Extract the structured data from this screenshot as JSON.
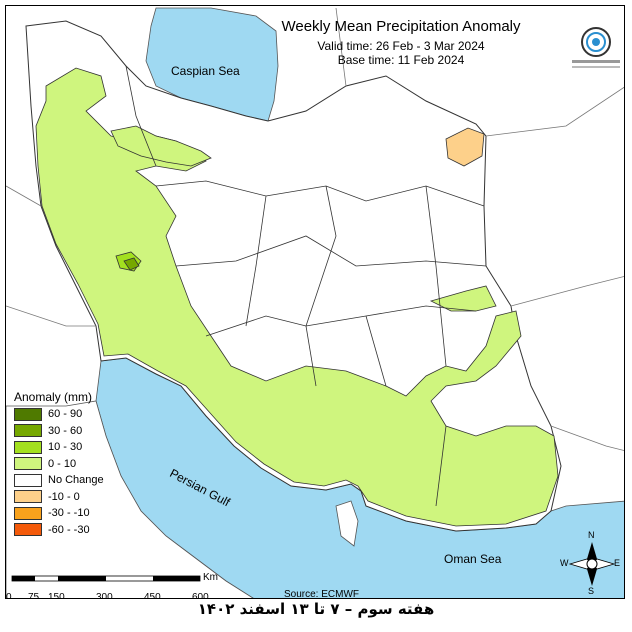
{
  "header": {
    "title": "Weekly Mean Precipitation Anomaly",
    "valid_time": "Valid time:  26 Feb - 3 Mar 2024",
    "base_time": "Base time: 11 Feb 2024"
  },
  "labels": {
    "caspian": "Caspian Sea",
    "persian_gulf": "Persian Gulf",
    "oman_sea": "Oman Sea"
  },
  "legend": {
    "title": "Anomaly (mm)",
    "items": [
      {
        "label": "60 - 90",
        "color": "#4f7a00"
      },
      {
        "label": "30 - 60",
        "color": "#76a800"
      },
      {
        "label": "10 - 30",
        "color": "#a3e01f"
      },
      {
        "label": "0 - 10",
        "color": "#cff57e"
      },
      {
        "label": "No Change",
        "color": "#ffffff"
      },
      {
        "label": "-10 - 0",
        "color": "#fdd08a"
      },
      {
        "label": "-30 - -10",
        "color": "#f9a21c"
      },
      {
        "label": "-60 - -30",
        "color": "#f45a0a"
      }
    ]
  },
  "scale": {
    "unit": "Km",
    "ticks": [
      "0",
      "75",
      "150",
      "300",
      "450",
      "600"
    ]
  },
  "compass": {
    "n": "N",
    "s": "S",
    "e": "E",
    "w": "W"
  },
  "source": "Source: ECMWF",
  "footer": "هفته سوم – ۷ تا ۱۳ اسفند ۱۴۰۲",
  "colors": {
    "sea": "#9fd9f2",
    "land_anomaly": "#cff57e",
    "land_none": "#ffffff",
    "dry_patch": "#fdd08a",
    "wet_patch": "#76a800"
  }
}
